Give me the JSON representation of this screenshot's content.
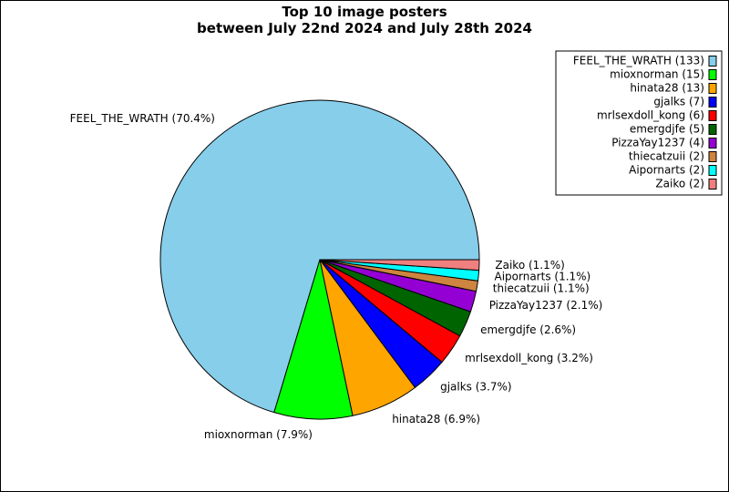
{
  "chart_data": {
    "type": "pie",
    "title": [
      "Top 10 image posters",
      "between July 22nd 2024 and July 28th 2024"
    ],
    "slices": [
      {
        "name": "FEEL_THE_WRATH",
        "count": 133,
        "percent": 70.4,
        "color": "#87ceeb",
        "label": "FEEL_THE_WRATH (70.4%)",
        "legend": "FEEL_THE_WRATH (133)"
      },
      {
        "name": "mioxnorman",
        "count": 15,
        "percent": 7.9,
        "color": "#00ff00",
        "label": "mioxnorman (7.9%)",
        "legend": "mioxnorman (15)"
      },
      {
        "name": "hinata28",
        "count": 13,
        "percent": 6.9,
        "color": "#ffa500",
        "label": "hinata28 (6.9%)",
        "legend": "hinata28 (13)"
      },
      {
        "name": "gjalks",
        "count": 7,
        "percent": 3.7,
        "color": "#0000ff",
        "label": "gjalks (3.7%)",
        "legend": "gjalks (7)"
      },
      {
        "name": "mrlsexdoll_kong",
        "count": 6,
        "percent": 3.2,
        "color": "#ff0000",
        "label": "mrlsexdoll_kong (3.2%)",
        "legend": "mrlsexdoll_kong (6)"
      },
      {
        "name": "emergdjfe",
        "count": 5,
        "percent": 2.6,
        "color": "#006400",
        "label": "emergdjfe (2.6%)",
        "legend": "emergdjfe (5)"
      },
      {
        "name": "PizzaYay1237",
        "count": 4,
        "percent": 2.1,
        "color": "#9400d3",
        "label": "PizzaYay1237 (2.1%)",
        "legend": "PizzaYay1237 (4)"
      },
      {
        "name": "thiecatzuii",
        "count": 2,
        "percent": 1.1,
        "color": "#cd853f",
        "label": "thiecatzuii (1.1%)",
        "legend": "thiecatzuii (2)"
      },
      {
        "name": "Aipornarts",
        "count": 2,
        "percent": 1.1,
        "color": "#00ffff",
        "label": "Aipornarts (1.1%)",
        "legend": "Aipornarts (2)"
      },
      {
        "name": "Zaiko",
        "count": 2,
        "percent": 1.1,
        "color": "#f08080",
        "label": "Zaiko (1.1%)",
        "legend": "Zaiko (2)"
      }
    ],
    "legend_position": "top-right"
  }
}
